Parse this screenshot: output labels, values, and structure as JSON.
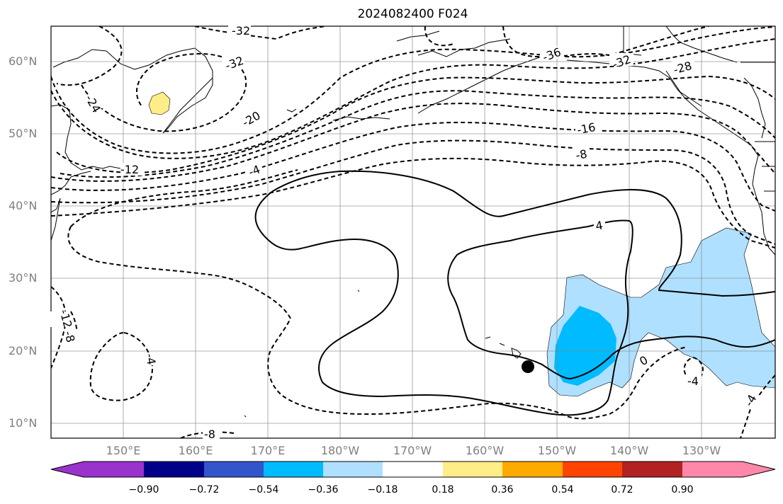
{
  "title": "2024082400 F024",
  "latitude_labels": [
    "60°N",
    "50°N",
    "40°N",
    "30°N",
    "20°N",
    "10°N"
  ],
  "longitude_labels": [
    "150°E",
    "160°E",
    "170°E",
    "180°W",
    "170°W",
    "160°W",
    "150°W",
    "140°W",
    "130°W"
  ],
  "contour_labels": [
    "-32",
    "-32",
    "-36",
    "-32",
    "-28",
    "-24",
    "-20",
    "-16",
    "-12",
    "-8",
    "-4",
    "4",
    "0",
    "-12",
    "-8",
    "-4",
    "-8",
    "-4",
    "-4"
  ],
  "colorbar": {
    "tick_labels": [
      "−0.90",
      "−0.72",
      "−0.54",
      "−0.36",
      "−0.18",
      "0.18",
      "0.36",
      "0.54",
      "0.72",
      "0.90"
    ],
    "colors": [
      "#9933cc",
      "#000088",
      "#3355cc",
      "#00bbff",
      "#b0e0ff",
      "#ffffff",
      "#ffee88",
      "#ffaa00",
      "#ff4400",
      "#b22222",
      "#ff88aa"
    ]
  },
  "shading_colors": {
    "light_blue": "#b0e0ff",
    "blue": "#00bbff",
    "yellow": "#ffee88"
  },
  "marker_icon": "black-dot"
}
